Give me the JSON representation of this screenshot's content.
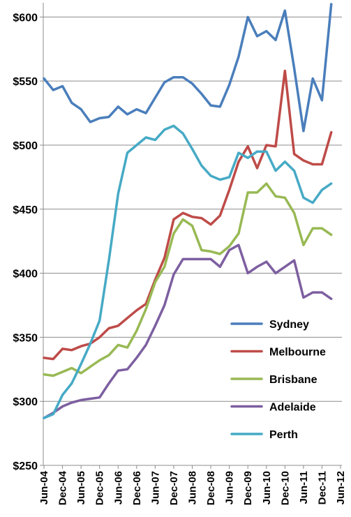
{
  "chart_data": {
    "type": "line",
    "title": "",
    "xlabel": "",
    "ylabel": "",
    "ylim": [
      250,
      610
    ],
    "ytick_values": [
      250,
      300,
      350,
      400,
      450,
      500,
      550,
      600
    ],
    "ytick_labels": [
      "$250",
      "$300",
      "$350",
      "$400",
      "$450",
      "$500",
      "$550",
      "$600"
    ],
    "x_tick_labels": [
      "Jun-04",
      "Dec-04",
      "Jun-05",
      "Dec-05",
      "Jun-06",
      "Dec-06",
      "Jun-07",
      "Dec-07",
      "Jun-08",
      "Dec-08",
      "Jun-09",
      "Dec-09",
      "Jun-10",
      "Dec-10",
      "Jun-11",
      "Dec-11",
      "Jun-12"
    ],
    "x_tick_positions": [
      0,
      2,
      4,
      6,
      8,
      10,
      12,
      14,
      16,
      18,
      20,
      22,
      24,
      26,
      28,
      30,
      32
    ],
    "x_range": [
      0,
      32
    ],
    "x_period": "quarterly",
    "grid": "horizontal",
    "legend_position": "bottom-right",
    "series": [
      {
        "name": "Sydney",
        "color": "#4a7ebb",
        "values": [
          552,
          543,
          546,
          533,
          528,
          518,
          521,
          522,
          530,
          524,
          528,
          525,
          537,
          549,
          553,
          553,
          548,
          540,
          531,
          530,
          547,
          569,
          600,
          585,
          589,
          582,
          605,
          560,
          511,
          552,
          535,
          610
        ]
      },
      {
        "name": "Melbourne",
        "color": "#be4b48",
        "values": [
          334,
          333,
          341,
          340,
          343,
          345,
          350,
          357,
          359,
          365,
          371,
          376,
          395,
          412,
          442,
          447,
          444,
          443,
          438,
          445,
          465,
          487,
          499,
          482,
          500,
          499,
          558,
          493,
          488,
          485,
          485,
          510
        ]
      },
      {
        "name": "Brisbane",
        "color": "#98b954",
        "values": [
          321,
          320,
          323,
          326,
          322,
          327,
          332,
          336,
          344,
          342,
          355,
          372,
          393,
          405,
          431,
          442,
          437,
          418,
          417,
          415,
          421,
          431,
          463,
          463,
          470,
          460,
          459,
          447,
          422,
          435,
          435,
          430
        ]
      },
      {
        "name": "Adelaide",
        "color": "#7d5fa0",
        "values": [
          287,
          291,
          296,
          299,
          301,
          302,
          303,
          314,
          324,
          325,
          334,
          344,
          359,
          375,
          399,
          411,
          411,
          411,
          411,
          405,
          418,
          422,
          400,
          405,
          409,
          400,
          405,
          410,
          381,
          385,
          385,
          380
        ]
      },
      {
        "name": "Perth",
        "color": "#46aac5",
        "values": [
          287,
          290,
          305,
          314,
          329,
          345,
          363,
          410,
          462,
          494,
          500,
          506,
          504,
          512,
          515,
          509,
          497,
          484,
          476,
          473,
          475,
          494,
          490,
          495,
          495,
          480,
          487,
          480,
          459,
          455,
          465,
          470
        ]
      }
    ]
  }
}
